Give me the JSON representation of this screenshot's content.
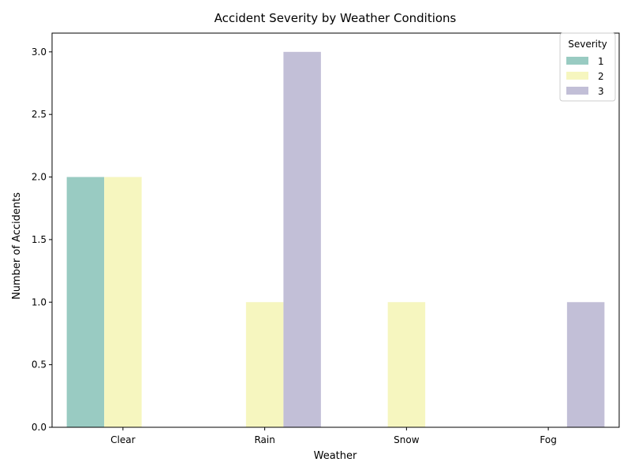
{
  "chart_data": {
    "type": "bar",
    "title": "Accident Severity by Weather Conditions",
    "xlabel": "Weather",
    "ylabel": "Number of Accidents",
    "categories": [
      "Clear",
      "Rain",
      "Snow",
      "Fog"
    ],
    "ylim": [
      0,
      3.15
    ],
    "yticks": [
      "0.0",
      "0.5",
      "1.0",
      "1.5",
      "2.0",
      "2.5",
      "3.0"
    ],
    "legend_title": "Severity",
    "legend_position": "top-right",
    "grid": false,
    "series": [
      {
        "name": "1",
        "color": "#99cbc2",
        "values": [
          2,
          0,
          0,
          0
        ]
      },
      {
        "name": "2",
        "color": "#f6f6bf",
        "values": [
          2,
          1,
          1,
          0
        ]
      },
      {
        "name": "3",
        "color": "#c2bfd7",
        "values": [
          0,
          3,
          0,
          1
        ]
      }
    ]
  }
}
